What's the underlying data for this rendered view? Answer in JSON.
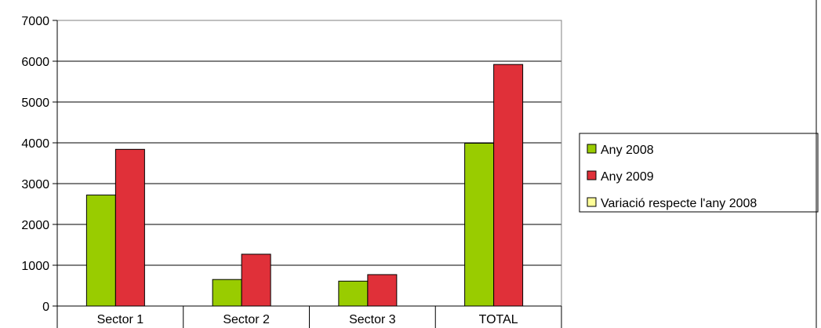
{
  "chart_data": {
    "type": "bar",
    "title": "",
    "xlabel": "",
    "ylabel": "",
    "categories": [
      "Sector 1",
      "Sector 2",
      "Sector 3",
      "TOTAL"
    ],
    "series": [
      {
        "name": "Any 2008",
        "color": "#99CC00",
        "values": [
          2720,
          650,
          610,
          3990
        ]
      },
      {
        "name": "Any 2009",
        "color": "#E03039",
        "values": [
          3840,
          1270,
          770,
          5920
        ]
      },
      {
        "name": "Variació respecte l'any 2008",
        "color": "#FFFF99",
        "values": [
          0,
          0,
          0,
          0
        ]
      }
    ],
    "ylim": [
      0,
      7000
    ],
    "yticks": [
      "0",
      "1000",
      "2000",
      "3000",
      "4000",
      "5000",
      "6000",
      "7000"
    ],
    "grid": true,
    "legend_position": "right"
  }
}
